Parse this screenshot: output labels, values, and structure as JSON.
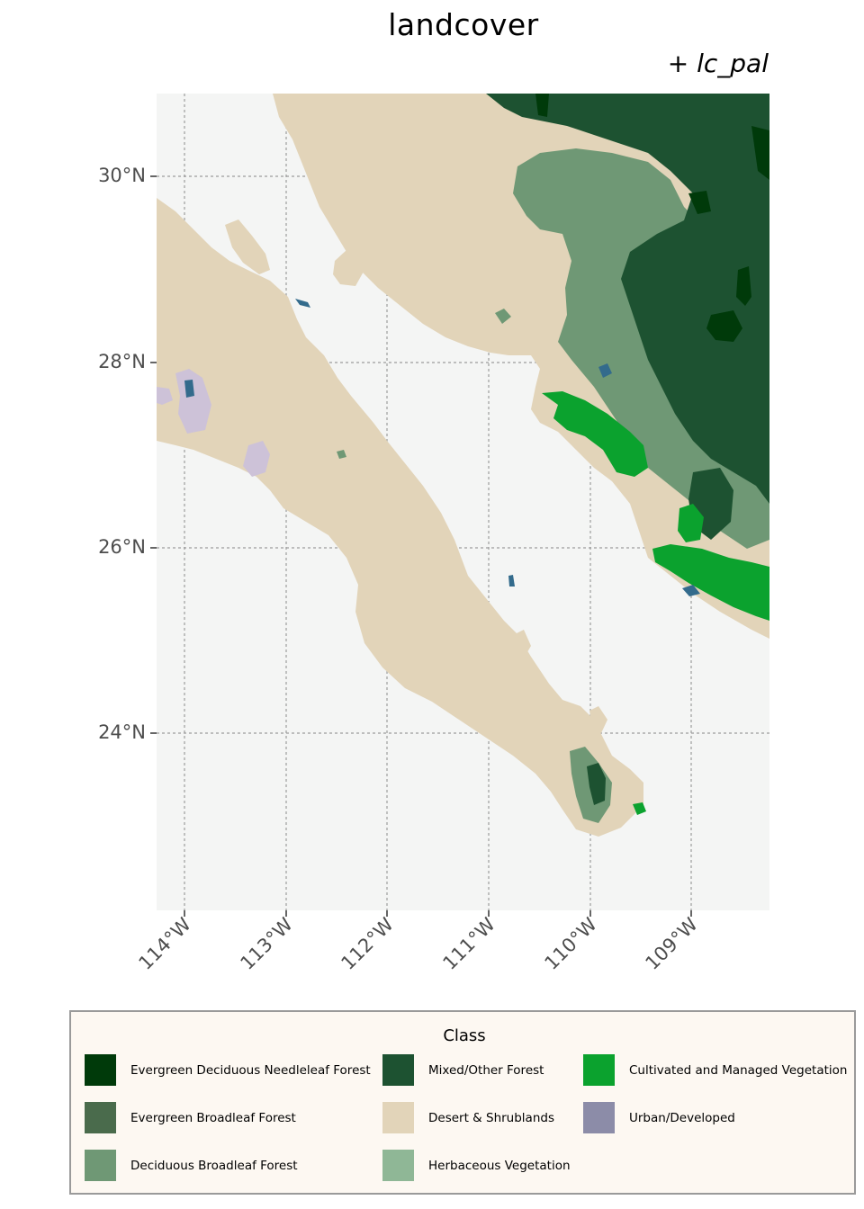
{
  "title": "landcover",
  "subtitle": "+ lc_pal",
  "axes": {
    "y_labels": [
      "30°N",
      "28°N",
      "26°N",
      "24°N"
    ],
    "x_labels": [
      "114°W",
      "113°W",
      "112°W",
      "111°W",
      "110°W",
      "109°W"
    ]
  },
  "colors": {
    "panel": "#f4f5f4",
    "grid": "#9c9c9c",
    "desert": "#e2d4b9",
    "needleleaf": "#003a0a",
    "mixed": "#1d5231",
    "evergreen_broadleaf": "#4a6b4c",
    "deciduous_broadleaf": "#6f9875",
    "herbaceous": "#8fb796",
    "cultivated": "#0ba22e",
    "urban": "#8c8ca8",
    "urban_light": "#cdc2d8",
    "water_patch": "#336b8c"
  },
  "legend": {
    "title": "Class",
    "items": [
      {
        "label": "Evergreen Deciduous Needleleaf Forest",
        "color": "#003a0a"
      },
      {
        "label": "Mixed/Other Forest",
        "color": "#1d5231"
      },
      {
        "label": "Cultivated and Managed Vegetation",
        "color": "#0ba22e"
      },
      {
        "label": "Evergreen Broadleaf Forest",
        "color": "#4a6b4c"
      },
      {
        "label": "Desert & Shrublands",
        "color": "#e2d4b9"
      },
      {
        "label": "Urban/Developed",
        "color": "#8c8ca8"
      },
      {
        "label": "Deciduous Broadleaf Forest",
        "color": "#6f9875"
      },
      {
        "label": "Herbaceous Vegetation",
        "color": "#8fb796"
      }
    ]
  }
}
